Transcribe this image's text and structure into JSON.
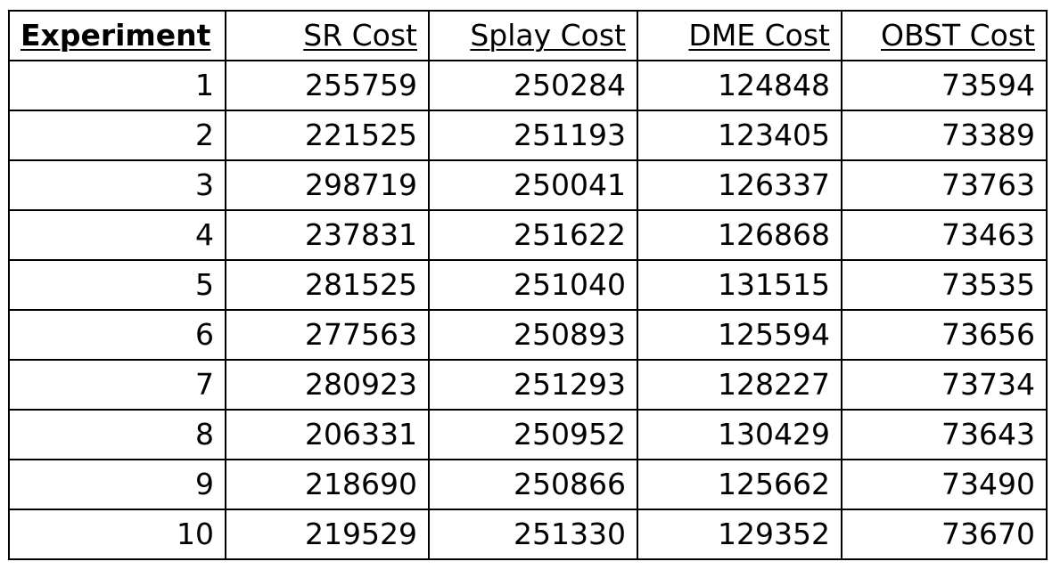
{
  "table": {
    "headers": [
      "Experiment",
      "SR Cost",
      "Splay Cost",
      "DME Cost",
      "OBST Cost"
    ],
    "rows": [
      [
        "1",
        "255759",
        "250284",
        "124848",
        "73594"
      ],
      [
        "2",
        "221525",
        "251193",
        "123405",
        "73389"
      ],
      [
        "3",
        "298719",
        "250041",
        "126337",
        "73763"
      ],
      [
        "4",
        "237831",
        "251622",
        "126868",
        "73463"
      ],
      [
        "5",
        "281525",
        "251040",
        "131515",
        "73535"
      ],
      [
        "6",
        "277563",
        "250893",
        "125594",
        "73656"
      ],
      [
        "7",
        "280923",
        "251293",
        "128227",
        "73734"
      ],
      [
        "8",
        "206331",
        "250952",
        "130429",
        "73643"
      ],
      [
        "9",
        "218690",
        "250866",
        "125662",
        "73490"
      ],
      [
        "10",
        "219529",
        "251330",
        "129352",
        "73670"
      ]
    ]
  }
}
